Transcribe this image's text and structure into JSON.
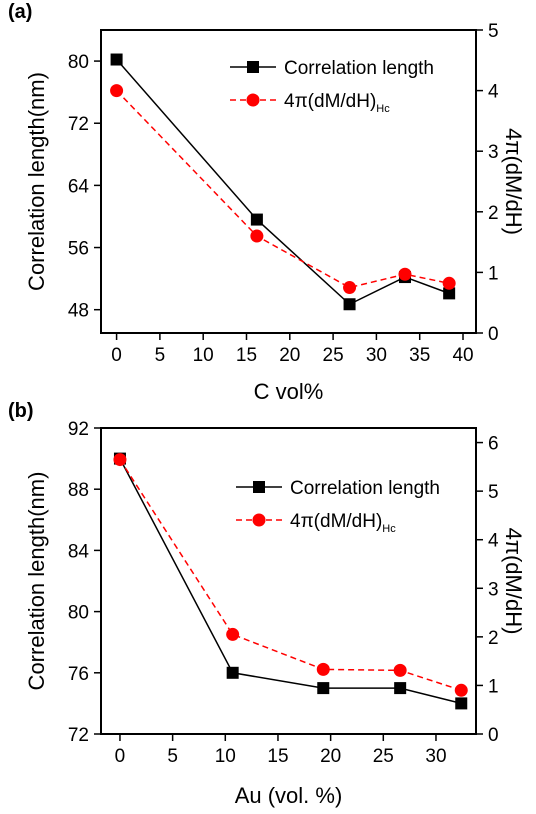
{
  "chart_data": [
    {
      "panel": "(a)",
      "type": "line",
      "xlabel": "C vol%",
      "ylabel_left": "Correlation length(nm)",
      "ylabel_right": "4π(dM/dH)",
      "xlim": [
        -1.8,
        41.5
      ],
      "ylim_left": [
        45,
        84
      ],
      "ylim_right": [
        0,
        5
      ],
      "xticks": [
        "0",
        "5",
        "10",
        "15",
        "20",
        "25",
        "30",
        "35",
        "40"
      ],
      "yticks_left": [
        "48",
        "56",
        "64",
        "72",
        "80"
      ],
      "yticks_right": [
        "0",
        "1",
        "2",
        "3",
        "4",
        "5"
      ],
      "legend_position": "top-right",
      "series": [
        {
          "name": "Correlation length",
          "axis": "left",
          "color": "#000000",
          "marker": "square",
          "line_style": "solid",
          "x": [
            0,
            16.2,
            26.9,
            33.3,
            38.4
          ],
          "y": [
            80.2,
            59.6,
            48.7,
            52.2,
            50.1
          ]
        },
        {
          "name_main": "4π(dM/dH)",
          "name_sub": "Hc",
          "axis": "right",
          "color": "#ff0000",
          "marker": "circle",
          "line_style": "dashed",
          "x": [
            0,
            16.2,
            26.9,
            33.3,
            38.4
          ],
          "y": [
            4.0,
            1.6,
            0.75,
            0.97,
            0.82
          ]
        }
      ]
    },
    {
      "panel": "(b)",
      "type": "line",
      "xlabel": "Au (vol. %)",
      "ylabel_left": "Correlation length(nm)",
      "ylabel_right": "4π(dM/dH)",
      "xlim": [
        -1.8,
        33.8
      ],
      "ylim_left": [
        72,
        92
      ],
      "ylim_right": [
        0,
        6.3
      ],
      "xticks": [
        "0",
        "5",
        "10",
        "15",
        "20",
        "25",
        "30"
      ],
      "yticks_left": [
        "72",
        "76",
        "80",
        "84",
        "88",
        "92"
      ],
      "yticks_right": [
        "0",
        "1",
        "2",
        "3",
        "4",
        "5",
        "6"
      ],
      "legend_position": "top-right",
      "series": [
        {
          "name": "Correlation length",
          "axis": "left",
          "color": "#000000",
          "marker": "square",
          "line_style": "solid",
          "x": [
            0,
            10.7,
            19.3,
            26.6,
            32.4
          ],
          "y": [
            90.0,
            76.0,
            75.0,
            75.0,
            74.0
          ]
        },
        {
          "name_main": "4π(dM/dH)",
          "name_sub": "Hc",
          "axis": "right",
          "color": "#ff0000",
          "marker": "circle",
          "line_style": "dashed",
          "x": [
            0,
            10.7,
            19.3,
            26.6,
            32.4
          ],
          "y": [
            5.65,
            2.05,
            1.33,
            1.31,
            0.9
          ]
        }
      ]
    }
  ]
}
